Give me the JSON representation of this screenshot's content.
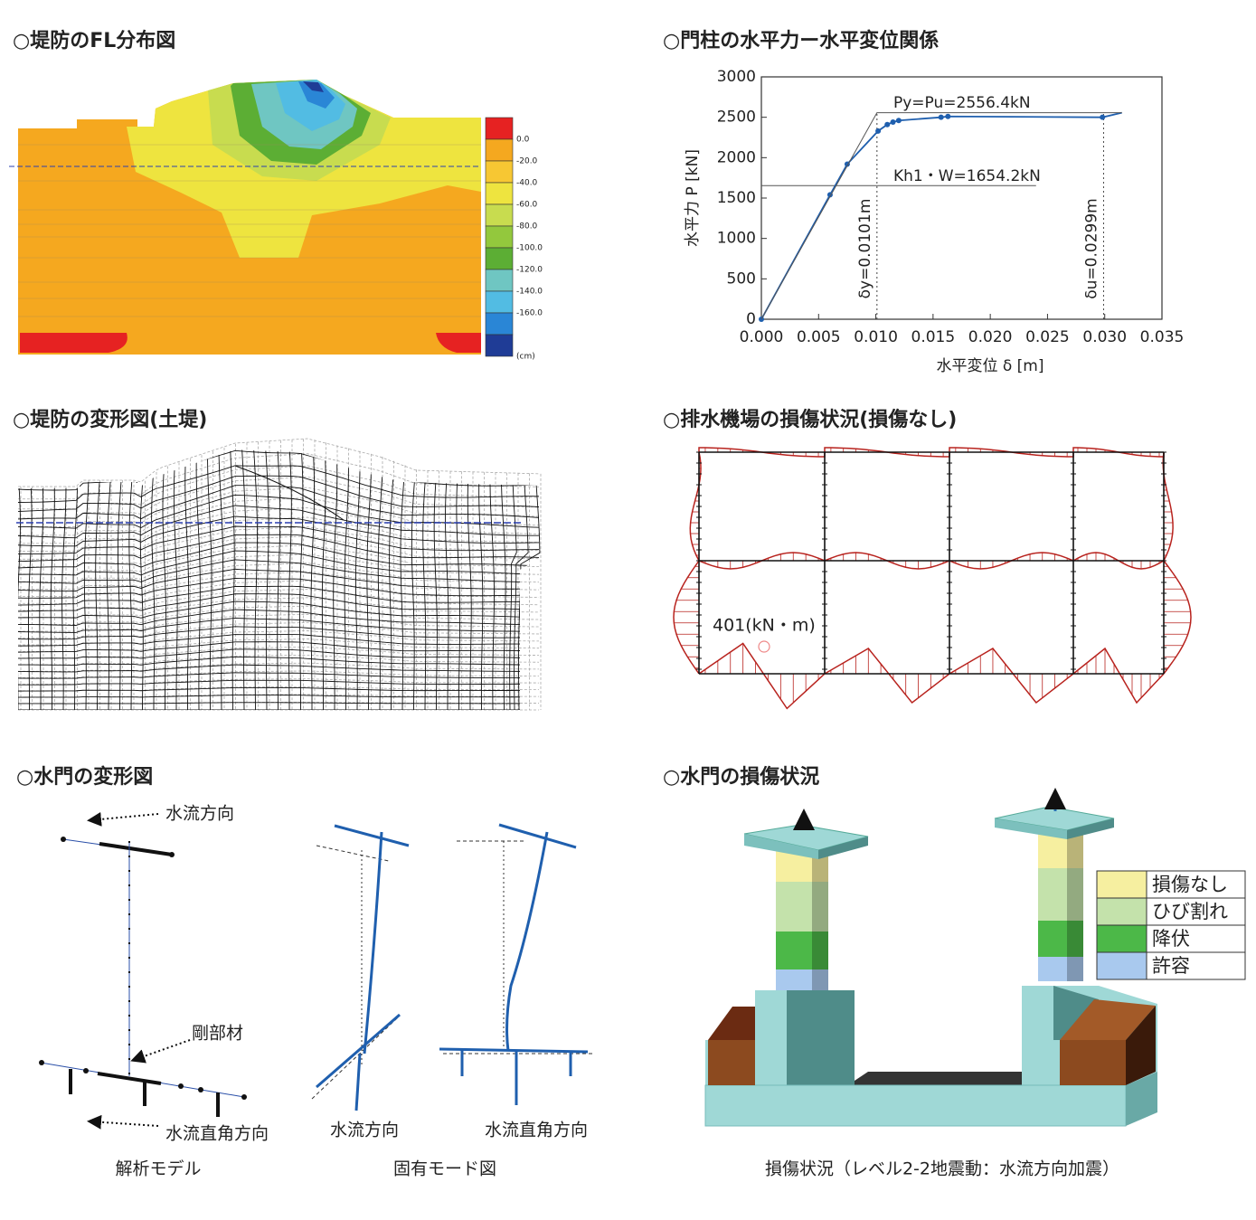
{
  "fl_map": {
    "title": "○堤防のFL分布図",
    "colors": [
      "#e62222",
      "#f5a81f",
      "#f7c733",
      "#eee43f",
      "#c8dc4f",
      "#93c83d",
      "#5cae34",
      "#6fc6c2",
      "#52bce3",
      "#2a86d6",
      "#1f3c96"
    ],
    "labels": [
      "0.0",
      "-20.0",
      "-40.0",
      "-60.0",
      "-80.0",
      "-100.0",
      "-120.0",
      "-140.0",
      "-160.0"
    ],
    "unit": "(cm)"
  },
  "chart_data": {
    "type": "line",
    "title": "○門柱の水平力ー水平変位関係",
    "x_label": "水平変位 δ [m]",
    "y_label": "水平力 P [kN]",
    "xlim": [
      0,
      0.035
    ],
    "ylim": [
      0,
      3000
    ],
    "xticks": [
      {
        "value": 0,
        "label": "0.000"
      },
      {
        "value": 0.005,
        "label": "0.005"
      },
      {
        "value": 0.01,
        "label": "0.010"
      },
      {
        "value": 0.015,
        "label": "0.015"
      },
      {
        "value": 0.02,
        "label": "0.020"
      },
      {
        "value": 0.025,
        "label": "0.025"
      },
      {
        "value": 0.03,
        "label": "0.030"
      },
      {
        "value": 0.035,
        "label": "0.035"
      }
    ],
    "yticks": [
      0,
      500,
      1000,
      1500,
      2000,
      2500,
      3000
    ],
    "series": [
      {
        "color": "#1f5fae",
        "style": "line",
        "x": [
          0,
          0.006,
          0.0075,
          0.0102,
          0.011,
          0.0115,
          0.012,
          0.0157,
          0.0163,
          0.0298,
          0.0315
        ],
        "values": [
          0,
          1540,
          1920,
          2330,
          2410,
          2440,
          2460,
          2500,
          2510,
          2500,
          2556
        ]
      },
      {
        "color": "#1f5fae",
        "style": "points",
        "x": [
          0,
          0.006,
          0.0075,
          0.0102,
          0.011,
          0.0115,
          0.012,
          0.0157,
          0.0163,
          0.0298
        ],
        "values": [
          0,
          1540,
          1920,
          2330,
          2410,
          2440,
          2460,
          2500,
          2510,
          2500
        ]
      },
      {
        "color": "#555555",
        "style": "line",
        "x": [
          0,
          0.0101,
          0.0315
        ],
        "values": [
          0,
          2556.4,
          2556.4
        ]
      }
    ],
    "hline": {
      "value": 1654.2,
      "label": "Kh1・W=1654.2kN"
    },
    "py_label": "Py=Pu=2556.4kN",
    "vlines": [
      {
        "value": 0.0101,
        "label": "δy=0.0101m"
      },
      {
        "value": 0.0299,
        "label": "δu=0.0299m"
      }
    ]
  },
  "deform": {
    "title": "○堤防の変形図(土堤)"
  },
  "frame": {
    "title": "○排水機場の損傷状況(損傷なし)",
    "annotation": "401(kN・m)"
  },
  "gate_model": {
    "title": "○水門の変形図",
    "flow": "水流方向",
    "rigid": "剛部材",
    "cross": "水流直角方向",
    "caption_model": "解析モデル",
    "mode_flow": "水流方向",
    "mode_cross": "水流直角方向",
    "caption_mode": "固有モード図"
  },
  "gate_damage": {
    "title": "○水門の損傷状況",
    "legend": [
      {
        "label": "損傷なし",
        "color": "#f6efa0"
      },
      {
        "label": "ひび割れ",
        "color": "#c4e2ab"
      },
      {
        "label": "降伏",
        "color": "#4cb848"
      },
      {
        "label": "許容",
        "color": "#a9c9ee"
      }
    ],
    "caption": "損傷状況（レベル2-2地震動：水流方向加震）"
  }
}
